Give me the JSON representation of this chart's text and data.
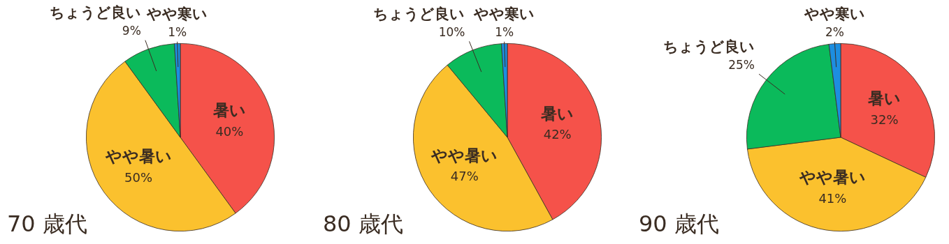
{
  "chart_data": [
    {
      "type": "pie",
      "title": "70 歳代",
      "categories": [
        "暑い",
        "やや暑い",
        "ちょうど良い",
        "やや寒い"
      ],
      "values": [
        40,
        50,
        9,
        1
      ],
      "colors": [
        "#f5524a",
        "#fbc12e",
        "#0bba5b",
        "#1d8ee0"
      ],
      "value_labels": [
        "40%",
        "50%",
        "9%",
        "1%"
      ],
      "legend": false
    },
    {
      "type": "pie",
      "title": "80 歳代",
      "categories": [
        "暑い",
        "やや暑い",
        "ちょうど良い",
        "やや寒い"
      ],
      "values": [
        42,
        47,
        10,
        1
      ],
      "colors": [
        "#f5524a",
        "#fbc12e",
        "#0bba5b",
        "#1d8ee0"
      ],
      "value_labels": [
        "42%",
        "47%",
        "10%",
        "1%"
      ],
      "legend": false
    },
    {
      "type": "pie",
      "title": "90 歳代",
      "categories": [
        "暑い",
        "やや暑い",
        "ちょうど良い",
        "やや寒い"
      ],
      "values": [
        32,
        41,
        25,
        2
      ],
      "colors": [
        "#f5524a",
        "#fbc12e",
        "#0bba5b",
        "#1d8ee0"
      ],
      "value_labels": [
        "32%",
        "41%",
        "25%",
        "2%"
      ],
      "legend": false
    }
  ]
}
